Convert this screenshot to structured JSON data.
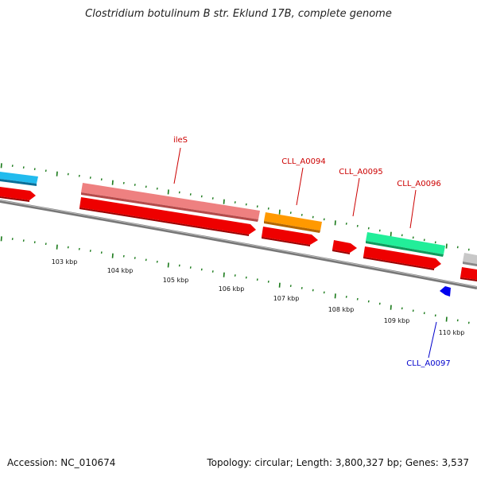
{
  "title": "Clostridium botulinum B str. Eklund 17B, complete genome",
  "accession": "Accession: NC_010674",
  "summary": "Topology: circular; Length: 3,800,327 bp; Genes: 3,537",
  "axis_labels": [
    "103 kbp",
    "104 kbp",
    "105 kbp",
    "106 kbp",
    "107 kbp",
    "108 kbp",
    "109 kbp",
    "110 kbp"
  ],
  "gene_labels": [
    {
      "text": "ileS",
      "strand": "forward"
    },
    {
      "text": "CLL_A0094",
      "strand": "forward"
    },
    {
      "text": "CLL_A0095",
      "strand": "forward"
    },
    {
      "text": "CLL_A0096",
      "strand": "forward"
    },
    {
      "text": "CLL_A0097",
      "strand": "reverse"
    }
  ],
  "colors": {
    "forward_label": "#cc0000",
    "reverse_label": "#0000cc",
    "tick": "#1a7a1a",
    "backbone": "#777777",
    "cds": "#ee0000",
    "ileS_gene": "#ee8080",
    "CLL_A0094_gene": "#ff9900",
    "CLL_A0096_gene": "#22ee99",
    "left_gene": "#22bbee",
    "right_gene": "#c8c8c8",
    "CLL_A0097_gene": "#0000ee"
  }
}
